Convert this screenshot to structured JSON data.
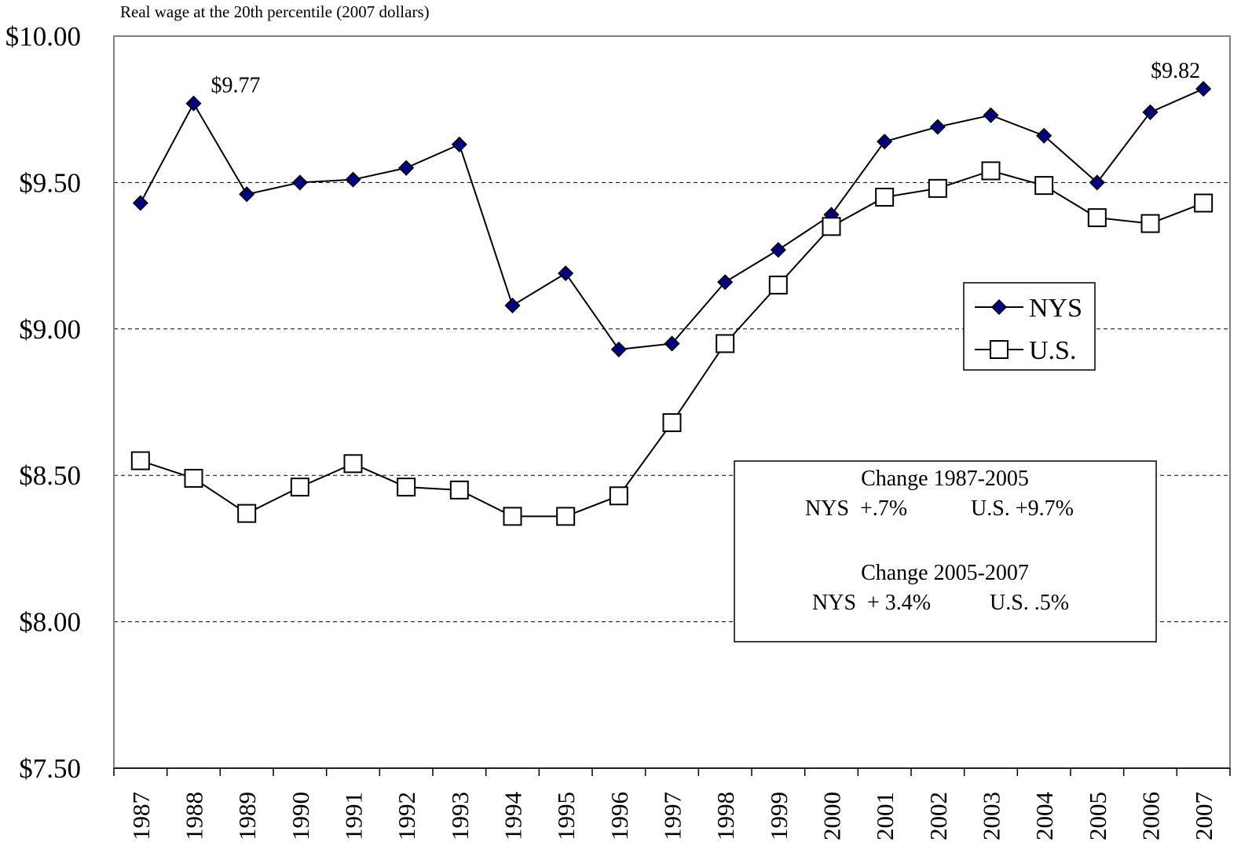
{
  "chart_data": {
    "type": "line",
    "title": "Real wage at the 20th percentile (2007 dollars)",
    "categories": [
      "1987",
      "1988",
      "1989",
      "1990",
      "1991",
      "1992",
      "1993",
      "1994",
      "1995",
      "1996",
      "1997",
      "1998",
      "1999",
      "2000",
      "2001",
      "2002",
      "2003",
      "2004",
      "2005",
      "2006",
      "2007"
    ],
    "series": [
      {
        "name": "NYS",
        "color": "#000080",
        "marker": "diamond",
        "values": [
          9.43,
          9.77,
          9.46,
          9.5,
          9.51,
          9.55,
          9.63,
          9.08,
          9.19,
          8.93,
          8.95,
          9.16,
          9.27,
          9.39,
          9.64,
          9.69,
          9.73,
          9.66,
          9.5,
          9.74,
          9.82
        ],
        "value_labels": [
          null,
          "$9.77",
          null,
          null,
          null,
          null,
          null,
          null,
          null,
          null,
          null,
          null,
          null,
          null,
          null,
          null,
          null,
          null,
          null,
          null,
          "$9.82"
        ]
      },
      {
        "name": "U.S.",
        "color": "#ffffff",
        "marker": "square",
        "values": [
          8.55,
          8.49,
          8.37,
          8.46,
          8.54,
          8.46,
          8.45,
          8.36,
          8.36,
          8.43,
          8.68,
          8.95,
          9.15,
          9.35,
          9.45,
          9.48,
          9.54,
          9.49,
          9.38,
          9.36,
          9.43
        ]
      }
    ],
    "ylim": [
      7.5,
      10
    ],
    "yticks": [
      {
        "value": 7.5,
        "label": "$7.50"
      },
      {
        "value": 8,
        "label": "$8.00"
      },
      {
        "value": 8.5,
        "label": "$8.50"
      },
      {
        "value": 9,
        "label": "$9.00"
      },
      {
        "value": 9.5,
        "label": "$9.50"
      },
      {
        "value": 10,
        "label": "$10.00"
      }
    ],
    "grid": true,
    "annotations": [
      {
        "title": "Change 1987-2005",
        "items": [
          "NYS  +.7%",
          "U.S. +9.7%"
        ]
      },
      {
        "title": "Change 2005-2007",
        "items": [
          "NYS  + 3.4%",
          "U.S. .5%"
        ]
      }
    ]
  }
}
